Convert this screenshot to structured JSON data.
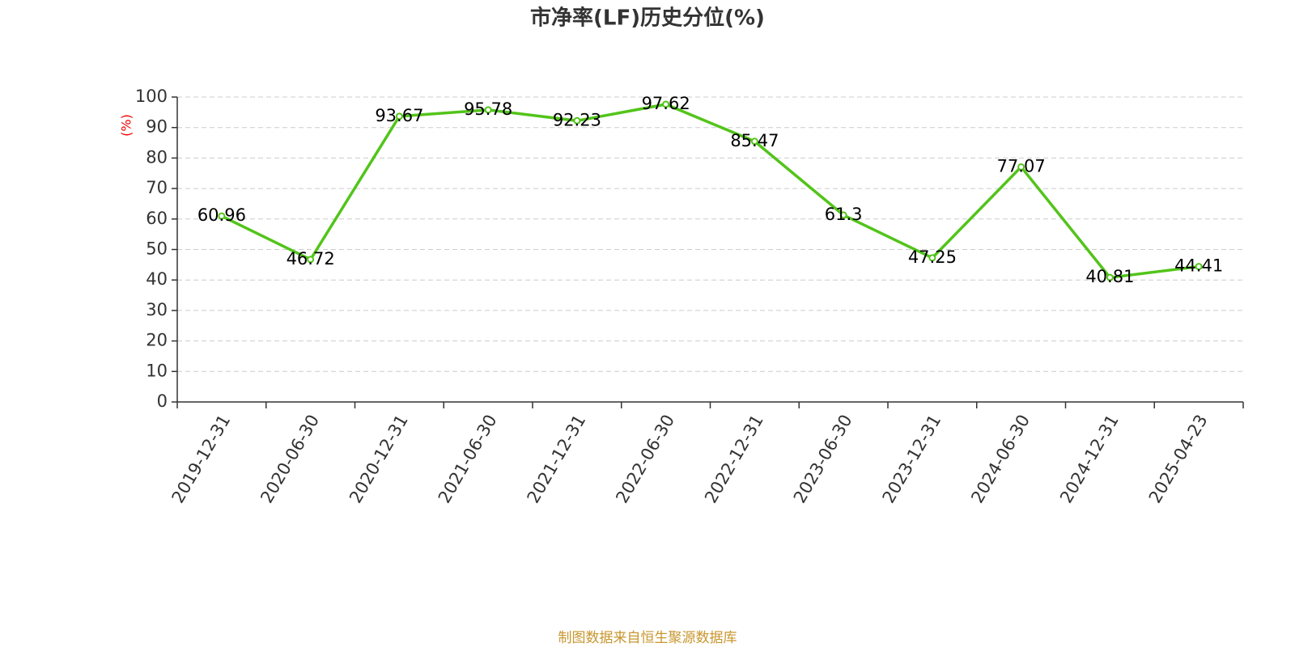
{
  "chart_data": {
    "type": "line",
    "title": "市净率(LF)历史分位(%)",
    "y_label": "(%)",
    "source": "制图数据来自恒生聚源数据库",
    "categories": [
      "2019-12-31",
      "2020-06-30",
      "2020-12-31",
      "2021-06-30",
      "2021-12-31",
      "2022-06-30",
      "2022-12-31",
      "2023-06-30",
      "2023-12-31",
      "2024-06-30",
      "2024-12-31",
      "2025-04-23"
    ],
    "series": [
      {
        "color": "#52c41a",
        "values": [
          60.96,
          46.72,
          93.67,
          95.78,
          92.23,
          97.62,
          85.47,
          61.3,
          47.25,
          77.07,
          40.81,
          44.41
        ]
      }
    ],
    "ylim": [
      0,
      100
    ],
    "yticks": [
      0,
      10,
      20,
      30,
      40,
      50,
      60,
      70,
      80,
      90,
      100
    ],
    "grid": true
  }
}
